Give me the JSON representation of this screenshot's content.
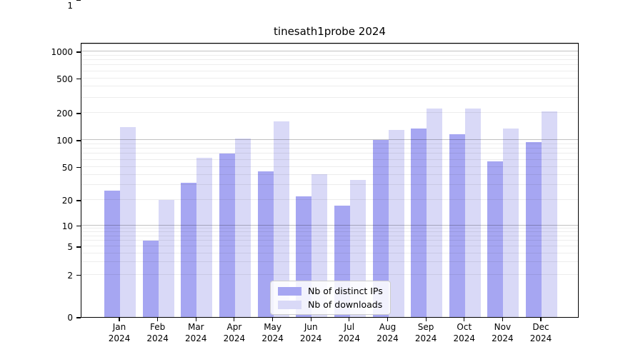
{
  "chart_data": {
    "type": "bar",
    "title": "tinesath1probe 2024",
    "year": "2024",
    "categories": [
      "Jan",
      "Feb",
      "Mar",
      "Apr",
      "May",
      "Jun",
      "Jul",
      "Aug",
      "Sep",
      "Oct",
      "Nov",
      "Dec"
    ],
    "series": [
      {
        "name": "Nb of distinct IPs",
        "color": "#a6a6f2",
        "values": [
          26,
          6,
          32,
          70,
          44,
          22,
          17,
          100,
          135,
          116,
          58,
          95
        ]
      },
      {
        "name": "Nb of downloads",
        "color": "#d9d9f7",
        "values": [
          140,
          20,
          63,
          103,
          160,
          41,
          35,
          130,
          225,
          225,
          135,
          207
        ]
      }
    ],
    "xlabel": "",
    "ylabel": "",
    "y_ticks": [
      0,
      1,
      2,
      5,
      10,
      20,
      50,
      100,
      200,
      500,
      1000
    ],
    "y_scale": "symlog",
    "ylim": [
      0,
      1280
    ],
    "grid": true,
    "legend_position": "lower center"
  }
}
